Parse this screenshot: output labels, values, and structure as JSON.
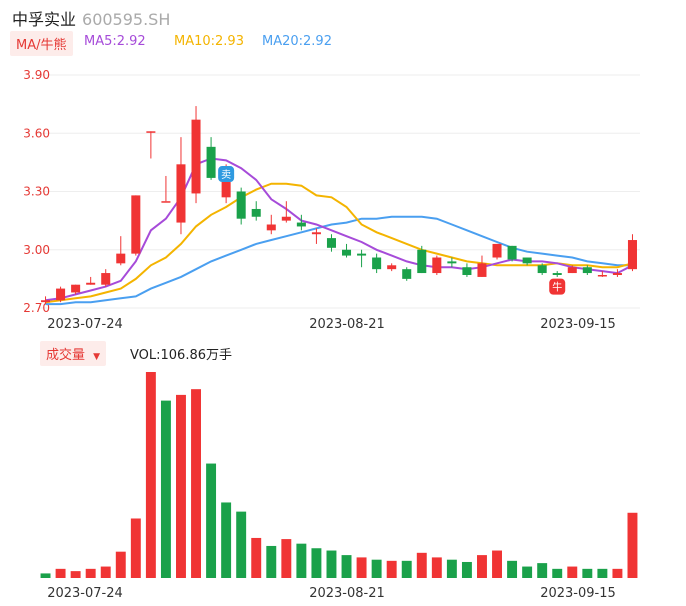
{
  "header": {
    "name": "中孚实业",
    "code": "600595.SH"
  },
  "ma": {
    "tag": "MA/牛熊",
    "ma5": "MA5:2.92",
    "ma10": "MA10:2.93",
    "ma20": "MA20:2.92",
    "colors": {
      "ma5": "#a64bd9",
      "ma10": "#f4b400",
      "ma20": "#4a9ff0"
    }
  },
  "volume": {
    "tag": "成交量",
    "readout": "VOL:106.86万手"
  },
  "colors": {
    "up": "#f03434",
    "down": "#1aa14a",
    "axis": "#e53935"
  },
  "markers": {
    "sell": "卖",
    "buy": "牛"
  },
  "chart_data": [
    {
      "type": "candlestick",
      "y_ticks": [
        "3.90",
        "3.60",
        "3.30",
        "3.00",
        "2.70"
      ],
      "ylim": [
        2.7,
        3.9
      ],
      "x_ticks": [
        "2023-07-24",
        "2023-08-21",
        "2023-09-15"
      ],
      "candles": [
        {
          "o": 2.73,
          "h": 2.76,
          "l": 2.72,
          "c": 2.74
        },
        {
          "o": 2.74,
          "h": 2.81,
          "l": 2.73,
          "c": 2.8
        },
        {
          "o": 2.78,
          "h": 2.82,
          "l": 2.77,
          "c": 2.82
        },
        {
          "o": 2.82,
          "h": 2.86,
          "l": 2.82,
          "c": 2.83
        },
        {
          "o": 2.82,
          "h": 2.9,
          "l": 2.81,
          "c": 2.88
        },
        {
          "o": 2.93,
          "h": 3.07,
          "l": 2.92,
          "c": 2.98
        },
        {
          "o": 2.98,
          "h": 3.28,
          "l": 2.97,
          "c": 3.28
        },
        {
          "o": 3.61,
          "h": 3.61,
          "l": 3.47,
          "c": 3.61
        },
        {
          "o": 3.25,
          "h": 3.38,
          "l": 3.25,
          "c": 3.25
        },
        {
          "o": 3.14,
          "h": 3.58,
          "l": 3.08,
          "c": 3.44
        },
        {
          "o": 3.29,
          "h": 3.74,
          "l": 3.24,
          "c": 3.67
        },
        {
          "o": 3.53,
          "h": 3.58,
          "l": 3.36,
          "c": 3.37
        },
        {
          "o": 3.27,
          "h": 3.44,
          "l": 3.24,
          "c": 3.35
        },
        {
          "o": 3.3,
          "h": 3.32,
          "l": 3.13,
          "c": 3.16
        },
        {
          "o": 3.21,
          "h": 3.25,
          "l": 3.15,
          "c": 3.17
        },
        {
          "o": 3.1,
          "h": 3.18,
          "l": 3.08,
          "c": 3.13
        },
        {
          "o": 3.15,
          "h": 3.25,
          "l": 3.14,
          "c": 3.17
        },
        {
          "o": 3.14,
          "h": 3.18,
          "l": 3.1,
          "c": 3.12
        },
        {
          "o": 3.08,
          "h": 3.11,
          "l": 3.03,
          "c": 3.09
        },
        {
          "o": 3.06,
          "h": 3.08,
          "l": 2.99,
          "c": 3.01
        },
        {
          "o": 3.0,
          "h": 3.03,
          "l": 2.96,
          "c": 2.97
        },
        {
          "o": 2.98,
          "h": 3.0,
          "l": 2.91,
          "c": 2.97
        },
        {
          "o": 2.96,
          "h": 2.98,
          "l": 2.88,
          "c": 2.9
        },
        {
          "o": 2.9,
          "h": 2.93,
          "l": 2.89,
          "c": 2.92
        },
        {
          "o": 2.9,
          "h": 2.91,
          "l": 2.84,
          "c": 2.85
        },
        {
          "o": 3.0,
          "h": 3.02,
          "l": 2.88,
          "c": 2.88
        },
        {
          "o": 2.88,
          "h": 2.97,
          "l": 2.87,
          "c": 2.96
        },
        {
          "o": 2.94,
          "h": 2.96,
          "l": 2.91,
          "c": 2.93
        },
        {
          "o": 2.91,
          "h": 2.93,
          "l": 2.86,
          "c": 2.87
        },
        {
          "o": 2.86,
          "h": 2.97,
          "l": 2.86,
          "c": 2.93
        },
        {
          "o": 2.96,
          "h": 3.03,
          "l": 2.95,
          "c": 3.03
        },
        {
          "o": 3.02,
          "h": 3.02,
          "l": 2.94,
          "c": 2.95
        },
        {
          "o": 2.96,
          "h": 2.96,
          "l": 2.92,
          "c": 2.93
        },
        {
          "o": 2.92,
          "h": 2.93,
          "l": 2.87,
          "c": 2.88
        },
        {
          "o": 2.88,
          "h": 2.89,
          "l": 2.86,
          "c": 2.87
        },
        {
          "o": 2.88,
          "h": 2.92,
          "l": 2.88,
          "c": 2.91
        },
        {
          "o": 2.91,
          "h": 2.92,
          "l": 2.87,
          "c": 2.88
        },
        {
          "o": 2.87,
          "h": 2.89,
          "l": 2.86,
          "c": 2.87
        },
        {
          "o": 2.87,
          "h": 2.9,
          "l": 2.86,
          "c": 2.88
        },
        {
          "o": 2.9,
          "h": 3.08,
          "l": 2.89,
          "c": 3.05
        }
      ],
      "ma5": [
        2.74,
        2.75,
        2.77,
        2.79,
        2.81,
        2.84,
        2.94,
        3.1,
        3.16,
        3.27,
        3.44,
        3.47,
        3.46,
        3.42,
        3.36,
        3.26,
        3.21,
        3.15,
        3.13,
        3.1,
        3.07,
        3.04,
        3.0,
        2.97,
        2.94,
        2.92,
        2.91,
        2.91,
        2.9,
        2.91,
        2.93,
        2.95,
        2.94,
        2.94,
        2.93,
        2.91,
        2.9,
        2.89,
        2.88,
        2.92
      ],
      "ma10": [
        2.73,
        2.74,
        2.75,
        2.76,
        2.78,
        2.8,
        2.85,
        2.92,
        2.96,
        3.03,
        3.12,
        3.18,
        3.22,
        3.27,
        3.31,
        3.34,
        3.34,
        3.33,
        3.28,
        3.27,
        3.22,
        3.13,
        3.09,
        3.06,
        3.03,
        3.0,
        2.98,
        2.96,
        2.94,
        2.93,
        2.92,
        2.92,
        2.92,
        2.92,
        2.93,
        2.92,
        2.92,
        2.91,
        2.91,
        2.93
      ],
      "ma20": [
        2.72,
        2.72,
        2.73,
        2.73,
        2.74,
        2.75,
        2.76,
        2.8,
        2.83,
        2.86,
        2.9,
        2.94,
        2.97,
        3.0,
        3.03,
        3.05,
        3.07,
        3.09,
        3.11,
        3.13,
        3.14,
        3.16,
        3.16,
        3.17,
        3.17,
        3.17,
        3.16,
        3.13,
        3.1,
        3.07,
        3.04,
        3.01,
        2.99,
        2.98,
        2.97,
        2.96,
        2.94,
        2.93,
        2.92,
        2.92
      ]
    },
    {
      "type": "bar",
      "series": [
        {
          "name": "VOL",
          "values": [
            4,
            8,
            6,
            8,
            10,
            23,
            52,
            180,
            155,
            160,
            165,
            100,
            66,
            58,
            35,
            28,
            34,
            30,
            26,
            24,
            20,
            18,
            16,
            15,
            15,
            22,
            18,
            16,
            14,
            20,
            24,
            15,
            10,
            13,
            8,
            10,
            8,
            8,
            8,
            57
          ],
          "directions": [
            "d",
            "u",
            "u",
            "u",
            "u",
            "u",
            "u",
            "u",
            "d",
            "u",
            "u",
            "d",
            "d",
            "d",
            "u",
            "d",
            "u",
            "d",
            "d",
            "d",
            "d",
            "u",
            "d",
            "u",
            "d",
            "u",
            "u",
            "d",
            "d",
            "u",
            "u",
            "d",
            "d",
            "d",
            "d",
            "u",
            "d",
            "d",
            "u",
            "u"
          ]
        }
      ]
    }
  ]
}
